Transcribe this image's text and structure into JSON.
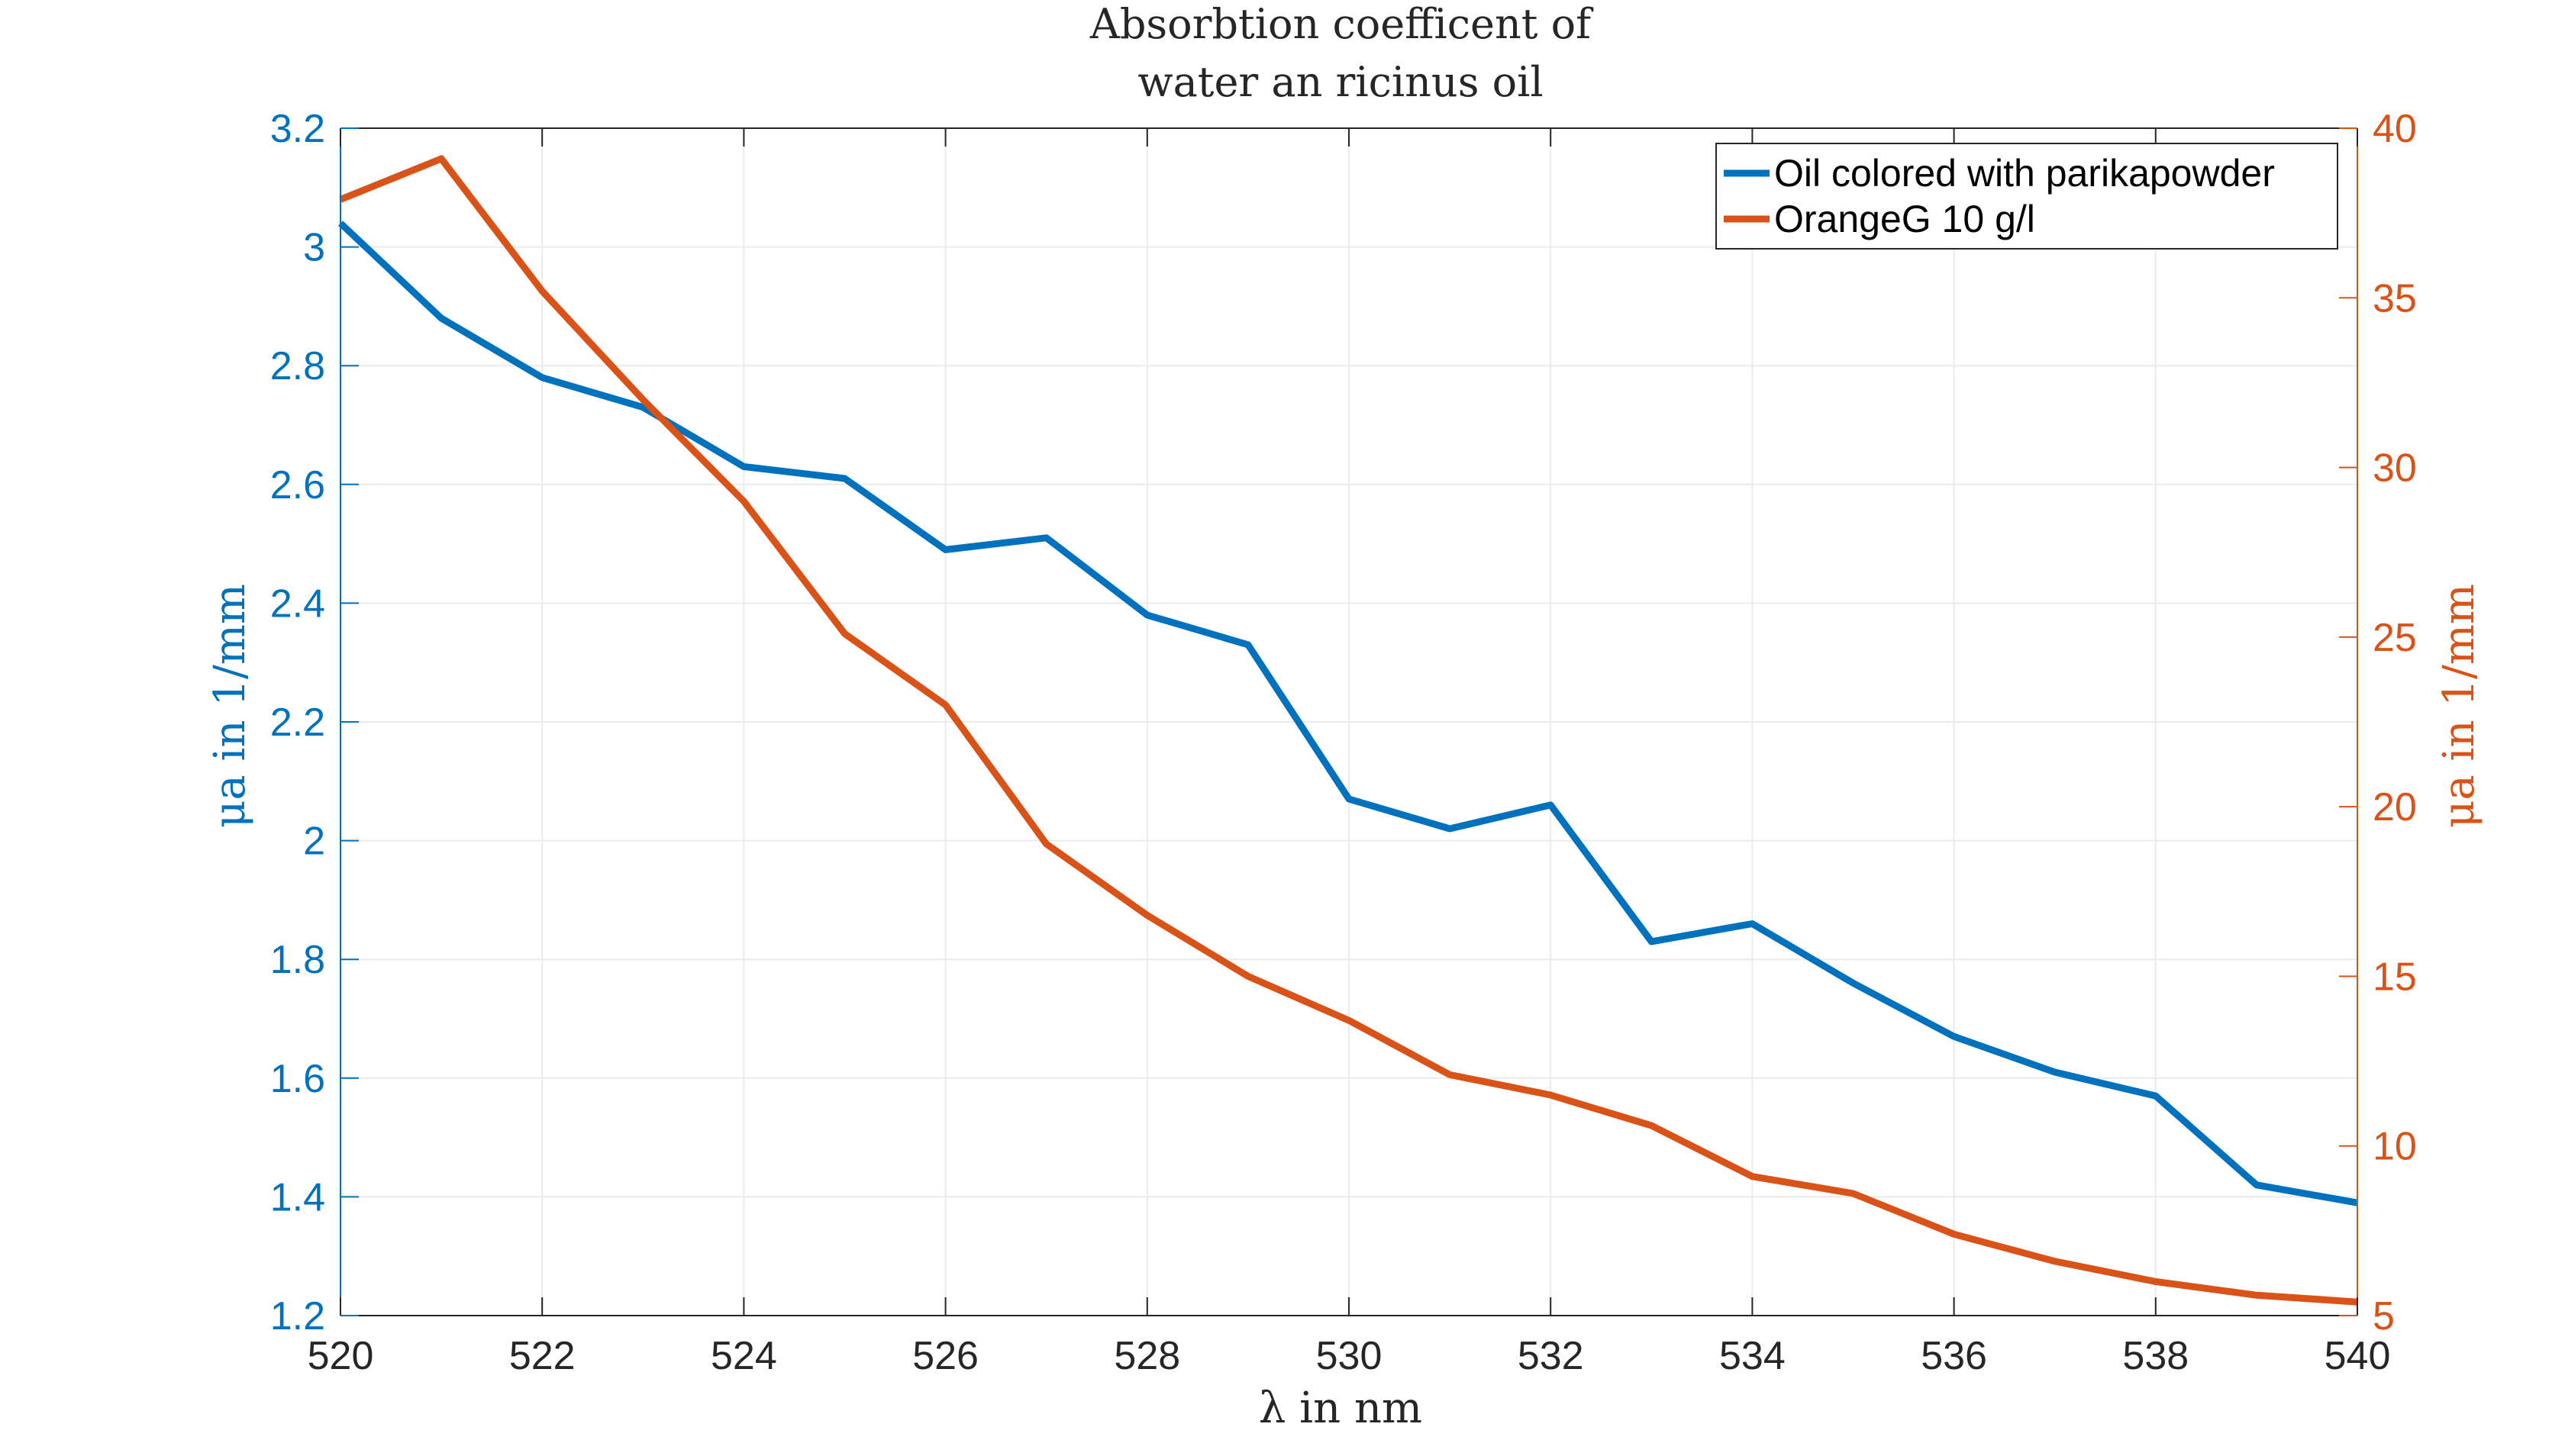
{
  "chart_data": {
    "type": "line",
    "title": [
      "Absorbtion coefficent of",
      "water an ricinus oil"
    ],
    "xlabel": "λ in nm",
    "ylabel_left": "μa in 1/mm",
    "ylabel_right": "μa in 1/mm",
    "xlim": [
      520,
      540
    ],
    "ylim_left": [
      1.2,
      3.2
    ],
    "ylim_right": [
      5,
      40
    ],
    "xticks": [
      "520",
      "522",
      "524",
      "526",
      "528",
      "530",
      "532",
      "534",
      "536",
      "538",
      "540"
    ],
    "yticks_left": [
      "1.2",
      "1.4",
      "1.6",
      "1.8",
      "2",
      "2.2",
      "2.4",
      "2.6",
      "2.8",
      "3",
      "3.2"
    ],
    "yticks_right": [
      "5",
      "10",
      "15",
      "20",
      "25",
      "30",
      "35",
      "40"
    ],
    "grid": true,
    "legend_position": "top-right",
    "colors": {
      "left_axis": "#0072BD",
      "right_axis": "#D95319"
    },
    "series": [
      {
        "name": "Oil colored with parikapowder",
        "axis": "left",
        "color": "#0072BD",
        "x": [
          520,
          521,
          522,
          523,
          524,
          525,
          526,
          527,
          528,
          529,
          530,
          531,
          532,
          533,
          534,
          535,
          536,
          537,
          538,
          539,
          540
        ],
        "y": [
          3.04,
          2.88,
          2.78,
          2.73,
          2.63,
          2.61,
          2.49,
          2.51,
          2.38,
          2.33,
          2.07,
          2.02,
          2.06,
          1.83,
          1.86,
          1.76,
          1.67,
          1.61,
          1.57,
          1.42,
          1.39
        ]
      },
      {
        "name": "OrangeG 10 g/l",
        "axis": "right",
        "color": "#D95319",
        "x": [
          520,
          521,
          522,
          523,
          524,
          525,
          526,
          527,
          528,
          529,
          530,
          531,
          532,
          533,
          534,
          535,
          536,
          537,
          538,
          539,
          540
        ],
        "y": [
          37.9,
          39.1,
          35.2,
          32.0,
          29.0,
          25.1,
          23.0,
          18.9,
          16.8,
          15.0,
          13.7,
          12.1,
          11.5,
          10.6,
          9.1,
          8.6,
          7.4,
          6.6,
          6.0,
          5.6,
          5.4
        ]
      }
    ]
  }
}
